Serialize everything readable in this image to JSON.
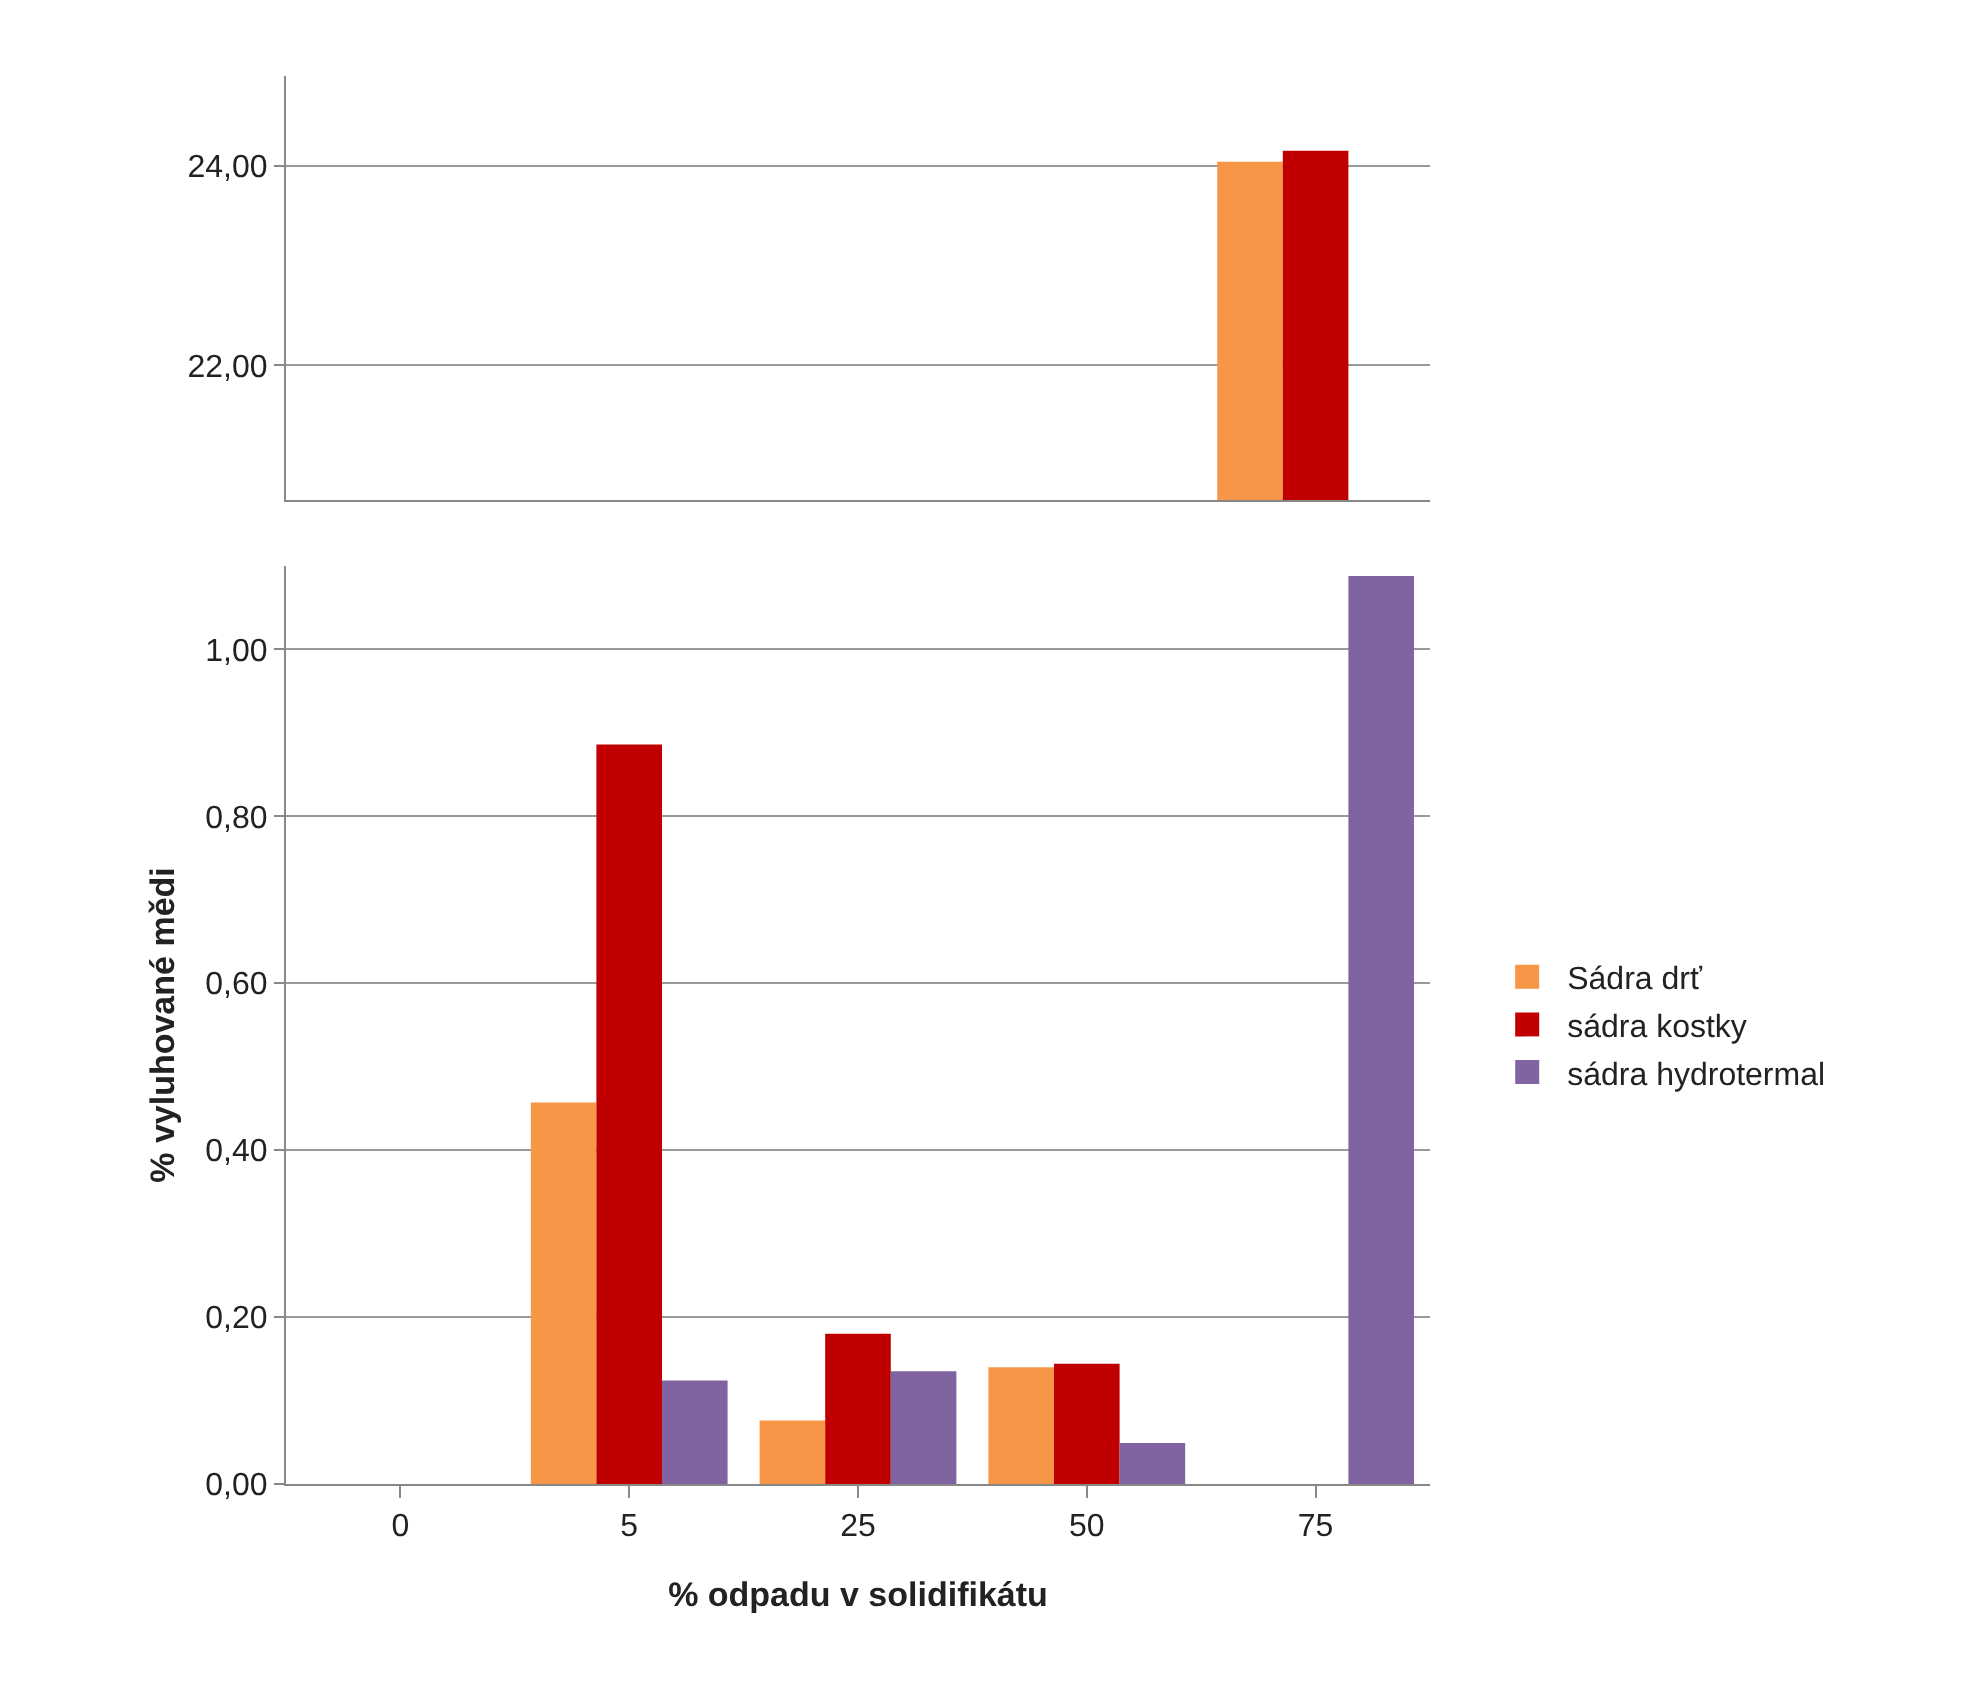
{
  "chart_data": [
    {
      "type": "bar",
      "categories": [
        "0",
        "5",
        "25",
        "50",
        "75"
      ],
      "ylim": [
        20.65,
        24.9
      ],
      "yticks": [
        {
          "value": 22,
          "label": "22,00"
        },
        {
          "value": 24,
          "label": "24,00"
        }
      ],
      "grid": "y",
      "legend": false,
      "tick_labels": "y",
      "series": [
        {
          "color": "#f79646",
          "values": [
            null,
            null,
            null,
            null,
            24.04
          ]
        },
        {
          "color": "#c00000",
          "values": [
            null,
            null,
            null,
            null,
            24.15
          ]
        },
        {
          "color": "#8064a2",
          "values": [
            null,
            null,
            null,
            null,
            null
          ]
        }
      ]
    },
    {
      "type": "bar",
      "categories": [
        "0",
        "5",
        "25",
        "50",
        "75"
      ],
      "xlabel": "% odpadu v solidifikátu",
      "ylabel": "% vyluhované mědi",
      "ylim": [
        0,
        1.1
      ],
      "yticks": [
        {
          "value": 0,
          "label": "0,00"
        },
        {
          "value": 0.2,
          "label": "0,20"
        },
        {
          "value": 0.4,
          "label": "0,40"
        },
        {
          "value": 0.6,
          "label": "0,60"
        },
        {
          "value": 0.8,
          "label": "0,80"
        },
        {
          "value": 1,
          "label": "1,00"
        }
      ],
      "grid": "y",
      "legend": "right",
      "series": [
        {
          "name": "Sádra drť",
          "color": "#f79646",
          "values": [
            0,
            0.457,
            0.076,
            0.14,
            null
          ]
        },
        {
          "name": "sádra kostky",
          "color": "#c00000",
          "values": [
            0,
            0.886,
            0.18,
            0.144,
            null
          ]
        },
        {
          "name": "sádra hydrotermal",
          "color": "#8064a2",
          "values": [
            0,
            0.124,
            0.135,
            0.049,
            1.088
          ]
        }
      ]
    }
  ]
}
